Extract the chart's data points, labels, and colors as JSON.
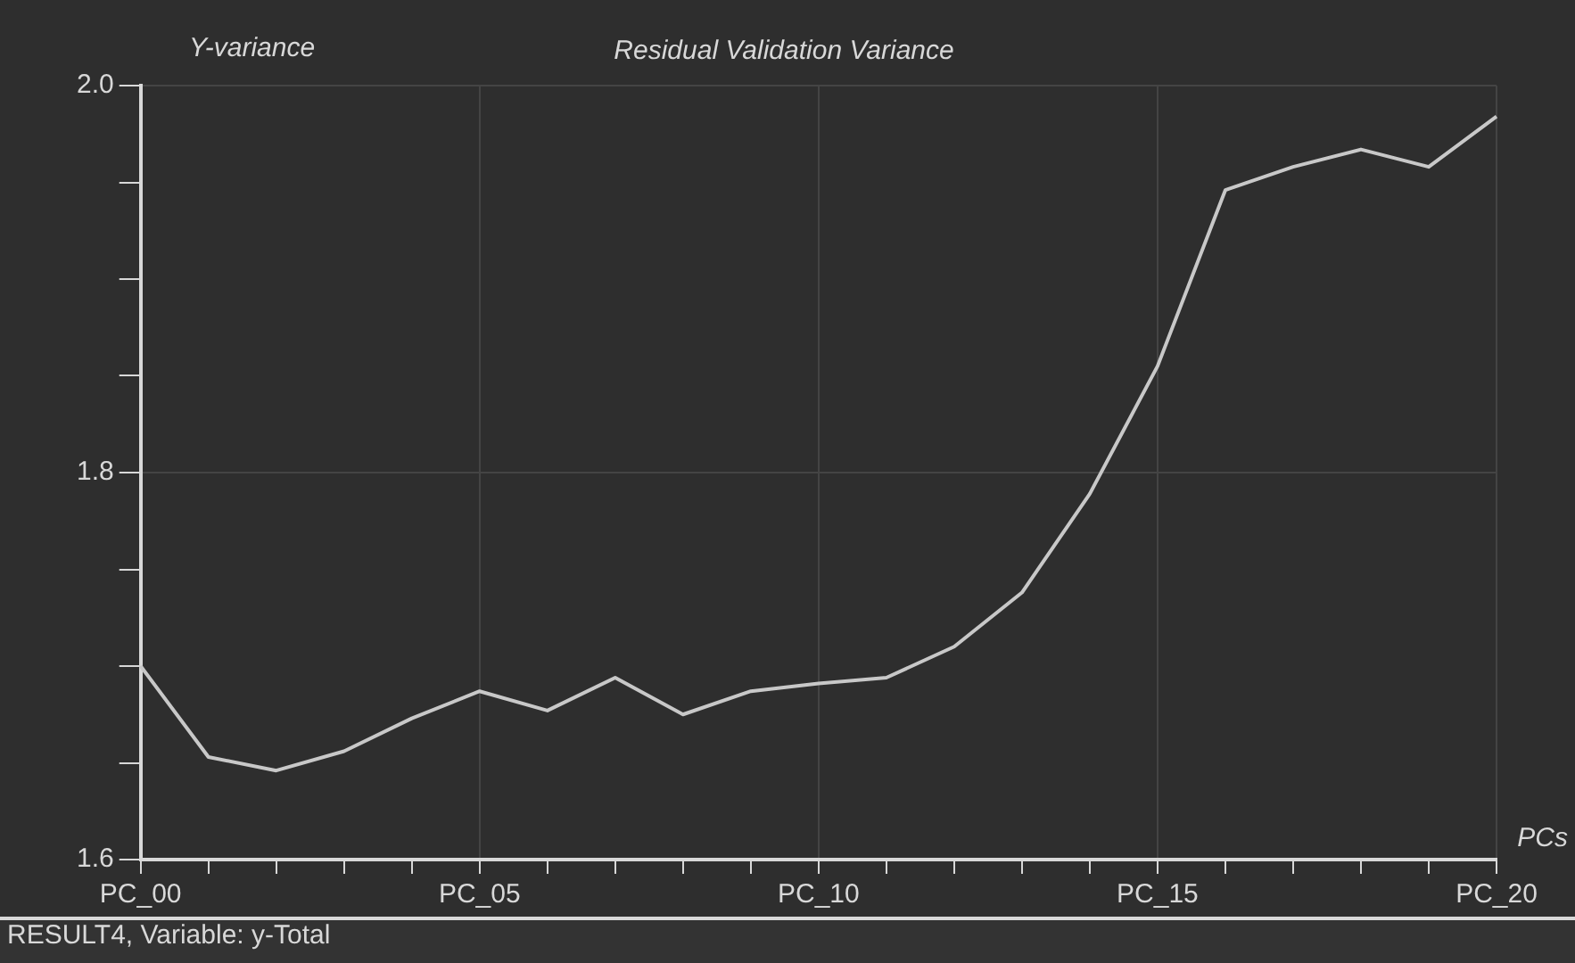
{
  "chart_data": {
    "type": "line",
    "title": "Residual Validation Variance",
    "ylabel": "Y-variance",
    "xlabel": "PCs",
    "annotations": [
      "RESULT4, Variable: y-Total"
    ],
    "categories": [
      "PC_00",
      null,
      null,
      null,
      null,
      "PC_05",
      null,
      null,
      null,
      null,
      "PC_10",
      null,
      null,
      null,
      null,
      "PC_15",
      null,
      null,
      null,
      null,
      "PC_20"
    ],
    "series": [
      {
        "color": "#c8c8c8",
        "values": [
          1.7,
          1.653,
          1.646,
          1.656,
          1.673,
          1.687,
          1.677,
          1.694,
          1.675,
          1.687,
          1.691,
          1.694,
          1.71,
          1.738,
          1.789,
          1.855,
          1.946,
          1.958,
          1.967,
          1.958,
          1.984
        ]
      }
    ],
    "ylim": [
      1.6,
      2.0
    ],
    "yticks": [
      {
        "value": 1.6,
        "label": "1.6"
      },
      {
        "value": 1.65,
        "label": null
      },
      {
        "value": 1.7,
        "label": null
      },
      {
        "value": 1.75,
        "label": null
      },
      {
        "value": 1.8,
        "label": "1.8"
      },
      {
        "value": 1.85,
        "label": null
      },
      {
        "value": 1.9,
        "label": null
      },
      {
        "value": 1.95,
        "label": null
      },
      {
        "value": 2.0,
        "label": "2.0"
      }
    ],
    "grid": true,
    "legend": false,
    "marker": "none",
    "line_style": "solid"
  }
}
